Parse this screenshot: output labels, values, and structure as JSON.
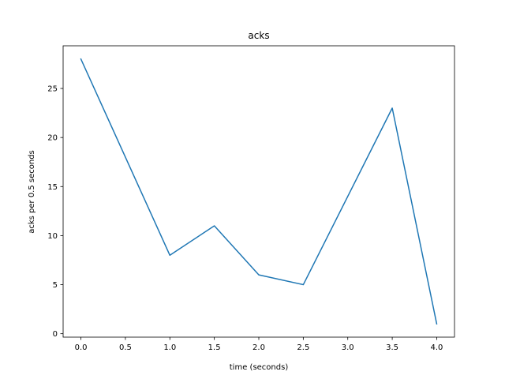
{
  "chart_data": {
    "type": "line",
    "title": "acks",
    "xlabel": "time (seconds)",
    "ylabel": "acks per 0.5 seconds",
    "x": [
      0.0,
      1.0,
      1.5,
      2.0,
      2.5,
      3.5,
      4.0
    ],
    "series": [
      {
        "values": [
          28,
          8,
          11,
          6,
          5,
          23,
          1
        ],
        "color": "#1f77b4"
      }
    ],
    "xlim": [
      -0.2,
      4.2
    ],
    "ylim": [
      -0.35,
      29.35
    ],
    "xticks": [
      0.0,
      0.5,
      1.0,
      1.5,
      2.0,
      2.5,
      3.0,
      3.5,
      4.0
    ],
    "xtick_labels": [
      "0.0",
      "0.5",
      "1.0",
      "1.5",
      "2.0",
      "2.5",
      "3.0",
      "3.5",
      "4.0"
    ],
    "yticks": [
      0,
      5,
      10,
      15,
      20,
      25
    ],
    "ytick_labels": [
      "0",
      "5",
      "10",
      "15",
      "20",
      "25"
    ],
    "grid": false,
    "legend": "none"
  }
}
